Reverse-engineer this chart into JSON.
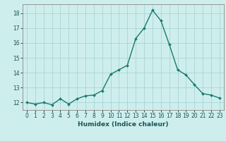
{
  "x": [
    0,
    1,
    2,
    3,
    4,
    5,
    6,
    7,
    8,
    9,
    10,
    11,
    12,
    13,
    14,
    15,
    16,
    17,
    18,
    19,
    20,
    21,
    22,
    23
  ],
  "y": [
    12.0,
    11.9,
    12.0,
    11.85,
    12.25,
    11.9,
    12.25,
    12.45,
    12.5,
    12.8,
    13.9,
    14.2,
    14.5,
    16.3,
    17.0,
    18.2,
    17.5,
    15.9,
    14.2,
    13.85,
    13.2,
    12.6,
    12.5,
    12.3
  ],
  "line_color": "#1a7a6e",
  "marker": "D",
  "marker_size": 2.0,
  "bg_color": "#ceeeed",
  "grid_color": "#aad4d4",
  "xlabel": "Humidex (Indice chaleur)",
  "xlim": [
    -0.5,
    23.5
  ],
  "ylim": [
    11.5,
    18.6
  ],
  "yticks": [
    12,
    13,
    14,
    15,
    16,
    17,
    18
  ],
  "xticks": [
    0,
    1,
    2,
    3,
    4,
    5,
    6,
    7,
    8,
    9,
    10,
    11,
    12,
    13,
    14,
    15,
    16,
    17,
    18,
    19,
    20,
    21,
    22,
    23
  ],
  "tick_fontsize": 5.5,
  "linewidth": 1.0,
  "xlabel_fontsize": 6.5,
  "xlabel_color": "#1a5555",
  "tick_color": "#1a5555",
  "spine_color": "#888888"
}
